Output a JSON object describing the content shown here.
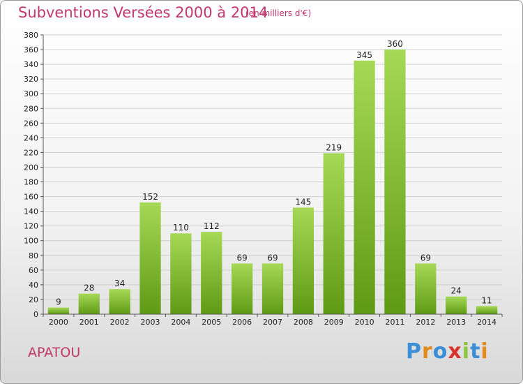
{
  "header": {
    "title": "Subventions Versées 2000 à 2014",
    "subtitle": "(en milliers d'€)"
  },
  "commune": "APATOU",
  "logo": {
    "text": "Proxiti",
    "colors": [
      "#3a8fd6",
      "#e08b1c",
      "#3a8fd6",
      "#d9342b",
      "#8cc63f",
      "#3a8fd6",
      "#e08b1c"
    ]
  },
  "chart_data": {
    "type": "bar",
    "categories": [
      "2000",
      "2001",
      "2002",
      "2003",
      "2004",
      "2005",
      "2006",
      "2007",
      "2008",
      "2009",
      "2010",
      "2011",
      "2012",
      "2013",
      "2014"
    ],
    "values": [
      9,
      28,
      34,
      152,
      110,
      112,
      69,
      69,
      145,
      219,
      345,
      360,
      69,
      24,
      11
    ],
    "data_labels": [
      "9",
      "28",
      "34",
      "152",
      "110",
      "112",
      "69",
      "69",
      "145",
      "219",
      "345",
      "360",
      "69",
      "24",
      "11"
    ],
    "ylim": [
      0,
      380
    ],
    "yticks": [
      0,
      20,
      40,
      60,
      80,
      100,
      120,
      140,
      160,
      180,
      200,
      220,
      240,
      260,
      280,
      300,
      320,
      340,
      360,
      380
    ],
    "grid": true,
    "bar_color": "#7cbf2a"
  }
}
